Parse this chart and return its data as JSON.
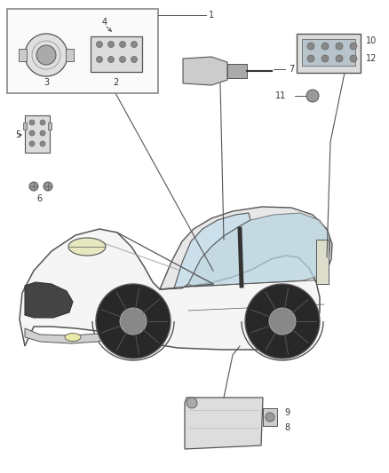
{
  "bg": "#ffffff",
  "lc": "#555555",
  "dk": "#333333",
  "fs": 7,
  "figsize": [
    4.38,
    5.33
  ],
  "dpi": 100,
  "car_body_fc": "#f5f5f5",
  "roof_fc": "#e8e8e8",
  "ws_fc": "#cce0ec",
  "win_fc": "#b8d4e0",
  "grille_fc": "#444444",
  "hl_fc": "#e8e8c0",
  "wheel_fc": "#282828",
  "hub_fc": "#888888",
  "bump_fc": "#d0d0d0",
  "box_fc": "#fafafa",
  "mod_fc": "#dcdcdc",
  "port_fc": "#aaaaaa"
}
